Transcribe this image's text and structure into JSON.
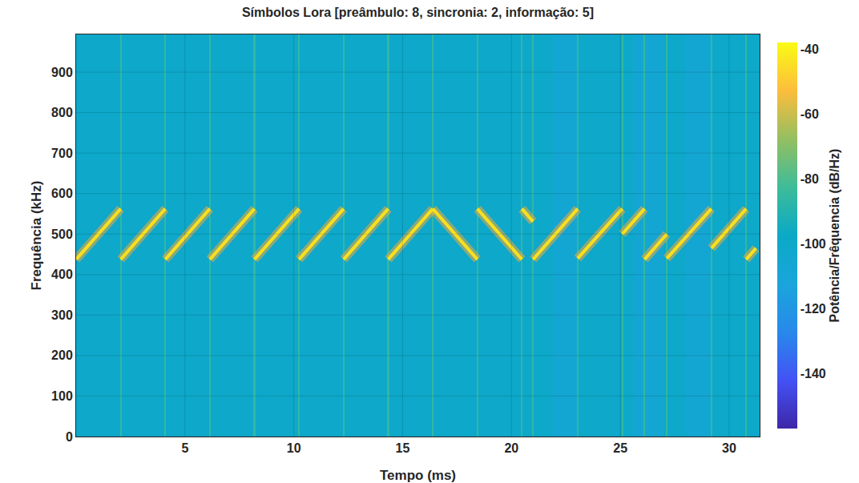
{
  "chart_data": {
    "type": "spectrogram",
    "title": "Símbolos Lora [preâmbulo: 8, sincronia: 2, informação: 5]",
    "x_label": "Tempo (ms)",
    "y_label": "Frequência (kHz)",
    "xlim": [
      0,
      31.4
    ],
    "ylim": [
      0,
      993
    ],
    "xticks": [
      5,
      10,
      15,
      20,
      25,
      30
    ],
    "yticks": [
      0,
      100,
      200,
      300,
      400,
      500,
      600,
      700,
      800,
      900
    ],
    "grid": true,
    "series": [
      {
        "color": "#f8e01f",
        "x": [
          0,
          2.048,
          null,
          2.048,
          4.096,
          null,
          4.096,
          6.144,
          null,
          6.144,
          8.192,
          null,
          8.192,
          10.24,
          null,
          10.24,
          12.288,
          null,
          12.288,
          14.336,
          null,
          14.336,
          16.384,
          null,
          16.384,
          18.432,
          null,
          18.432,
          20.48,
          null,
          20.48,
          20.992,
          null,
          20.992,
          23.04,
          null,
          23.04,
          25.088,
          null,
          25.088,
          26.112,
          null,
          26.112,
          27.136,
          null,
          27.136,
          29.184,
          null,
          29.184,
          30.78,
          null,
          30.78,
          31.232
        ],
        "y": [
          437.5,
          562.5,
          null,
          437.5,
          562.5,
          null,
          437.5,
          562.5,
          null,
          437.5,
          562.5,
          null,
          437.5,
          562.5,
          null,
          437.5,
          562.5,
          null,
          437.5,
          562.5,
          null,
          437.5,
          562.5,
          null,
          562.5,
          437.5,
          null,
          562.5,
          437.5,
          null,
          562.5,
          531,
          null,
          437.5,
          562.5,
          null,
          440,
          562.5,
          null,
          500,
          562.5,
          null,
          437.5,
          500,
          null,
          440,
          562.5,
          null,
          465,
          562.5,
          null,
          437.5,
          465
        ]
      }
    ],
    "heatmap": {
      "x_edges": [
        0,
        2.01,
        2.09,
        4.06,
        4.14,
        6.1,
        6.18,
        8.15,
        8.23,
        10.2,
        10.28,
        12.25,
        12.33,
        14.3,
        14.38,
        16.34,
        16.42,
        18.39,
        18.47,
        20.44,
        20.52,
        20.95,
        21.03,
        21.9,
        23.0,
        23.08,
        25.05,
        25.13,
        25.6,
        26.07,
        26.15,
        27.0,
        27.1,
        27.17,
        28.0,
        29.14,
        29.22,
        30.74,
        30.82,
        31.4
      ],
      "y_edges": [
        0,
        993
      ],
      "values": [
        -100,
        -86,
        -100,
        -86,
        -100,
        -86,
        -100,
        -86,
        -100,
        -86,
        -100,
        -86,
        -100,
        -86,
        -100,
        -86,
        -100,
        -86,
        -100,
        -86,
        -100,
        -86,
        -100,
        -107,
        -86,
        -100,
        -86,
        -100,
        -107,
        -86,
        -107,
        -100,
        -86,
        -100,
        -107,
        -86,
        -100,
        -86,
        -100
      ]
    },
    "colorbar": {
      "label": "Potência/Frêquencia (dB/Hz)",
      "range": [
        -157,
        -38
      ],
      "ticks": [
        -140,
        -120,
        -100,
        -80,
        -60,
        -40
      ]
    }
  }
}
